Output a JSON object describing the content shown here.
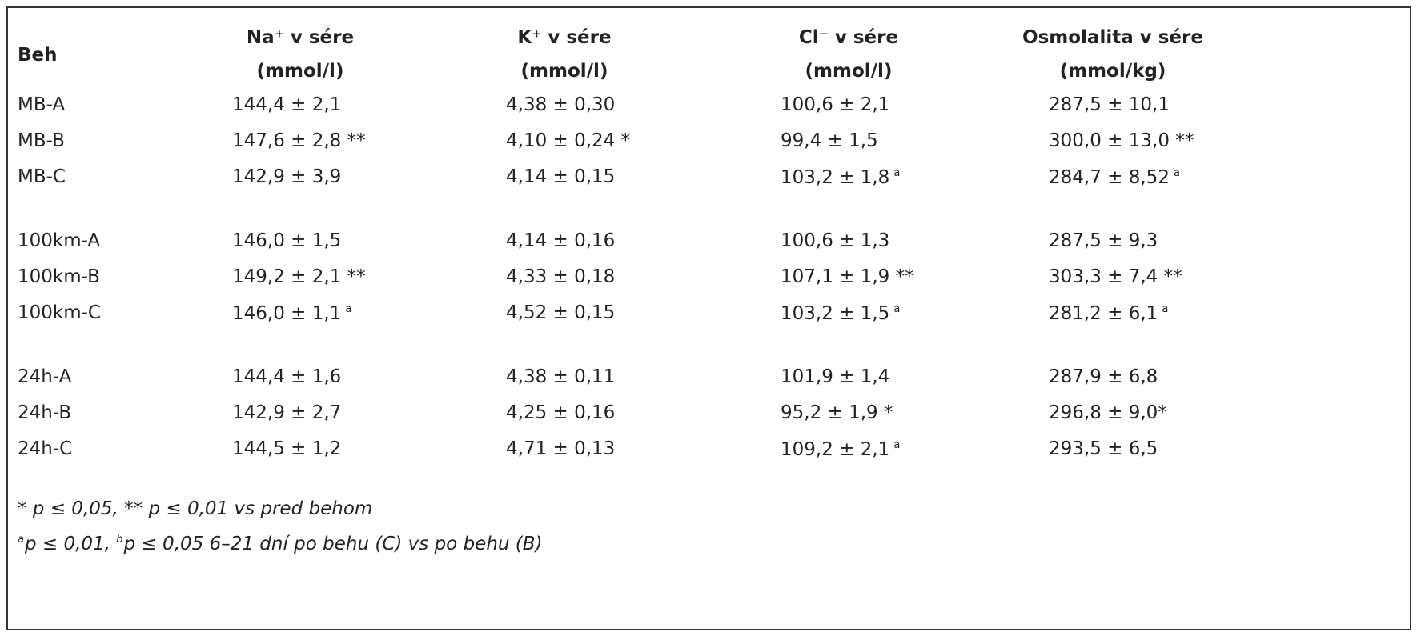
{
  "table": {
    "header": [
      "Beh",
      {
        "line1": "Na⁺ v sére",
        "line2": "(mmol/l)"
      },
      {
        "line1": "K⁺ v sére",
        "line2": "(mmol/l)"
      },
      {
        "line1": "Cl⁻ v sére",
        "line2": "(mmol/l)"
      },
      {
        "line1": "Osmolalita v sére",
        "line2": "(mmol/kg)"
      }
    ],
    "rows": [
      [
        "MB-A",
        "144,4 ± 2,1",
        "4,38 ± 0,30",
        "100,6 ± 2,1",
        "287,5 ± 10,1"
      ],
      [
        "MB-B",
        "147,6 ± 2,8 **",
        "4,10 ± 0,24 *",
        "99,4 ± 1,5",
        "300,0 ± 13,0 **"
      ],
      [
        "MB-C",
        "142,9 ± 3,9",
        "4,14 ± 0,15",
        {
          "text": "103,2 ± 1,8",
          "sup": "a"
        },
        {
          "text": "284,7 ± 8,52",
          "sup": "a"
        }
      ],
      [
        "100km-A",
        "146,0 ± 1,5",
        "4,14 ± 0,16",
        "100,6 ± 1,3",
        "287,5 ± 9,3"
      ],
      [
        "100km-B",
        "149,2 ± 2,1 **",
        "4,33 ± 0,18",
        "107,1 ± 1,9 **",
        "303,3 ± 7,4 **"
      ],
      [
        "100km-C",
        {
          "text": "146,0 ± 1,1",
          "sup": "a"
        },
        "4,52 ± 0,15",
        {
          "text": "103,2 ± 1,5",
          "sup": "a"
        },
        {
          "text": "281,2 ± 6,1",
          "sup": "a"
        }
      ],
      [
        "24h-A",
        "144,4 ± 1,6",
        "4,38 ± 0,11",
        "101,9 ± 1,4",
        "287,9 ± 6,8"
      ],
      [
        "24h-B",
        "142,9 ± 2,7",
        "4,25 ± 0,16",
        "95,2 ± 1,9 *",
        "296,8 ± 9,0*"
      ],
      [
        "24h-C",
        "144,5 ± 1,2",
        "4,71 ± 0,13",
        {
          "text": "109,2 ± 2,1",
          "sup": "a"
        },
        "293,5 ± 6,5"
      ]
    ],
    "footnotes": [
      "* p ≤ 0,05, ** p ≤ 0,01 vs pred behom",
      [
        {
          "sup": "a"
        },
        "p ≤ 0,01, ",
        {
          "sup": "b"
        },
        "p ≤ 0,05 6–21 dní po behu (C) vs po behu (B)"
      ]
    ]
  }
}
